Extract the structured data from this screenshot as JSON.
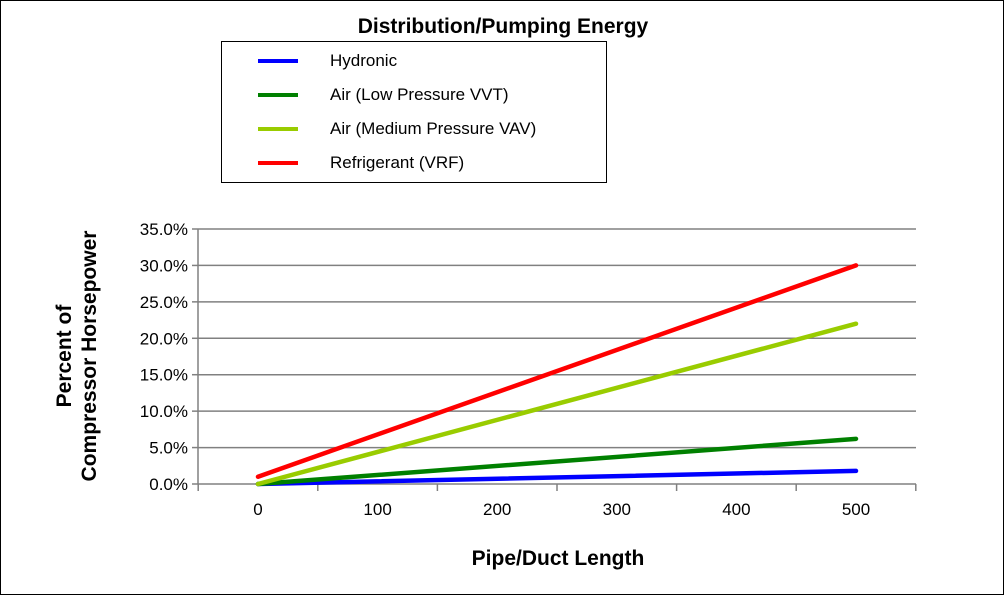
{
  "chart_data": {
    "type": "line",
    "title": "Distribution/Pumping Energy",
    "xlabel": "Pipe/Duct Length",
    "ylabel_lines": [
      "Percent of",
      "Compressor Horsepower"
    ],
    "categories": [
      "0",
      "100",
      "200",
      "300",
      "400",
      "500"
    ],
    "x": [
      0,
      500
    ],
    "ylim": [
      0,
      35
    ],
    "yticks": [
      "0.0%",
      "5.0%",
      "10.0%",
      "15.0%",
      "20.0%",
      "25.0%",
      "30.0%",
      "35.0%"
    ],
    "grid": true,
    "legend_position": "top",
    "series": [
      {
        "name": "Hydronic",
        "color": "#0000ff",
        "values": [
          0,
          1.8
        ]
      },
      {
        "name": "Air (Low Pressure VVT)",
        "color": "#008000",
        "values": [
          0,
          6.2
        ]
      },
      {
        "name": "Air (Medium Pressure VAV)",
        "color": "#99cc00",
        "values": [
          0,
          22
        ]
      },
      {
        "name": "Refrigerant (VRF)",
        "color": "#ff0000",
        "values": [
          1,
          30
        ]
      }
    ]
  }
}
